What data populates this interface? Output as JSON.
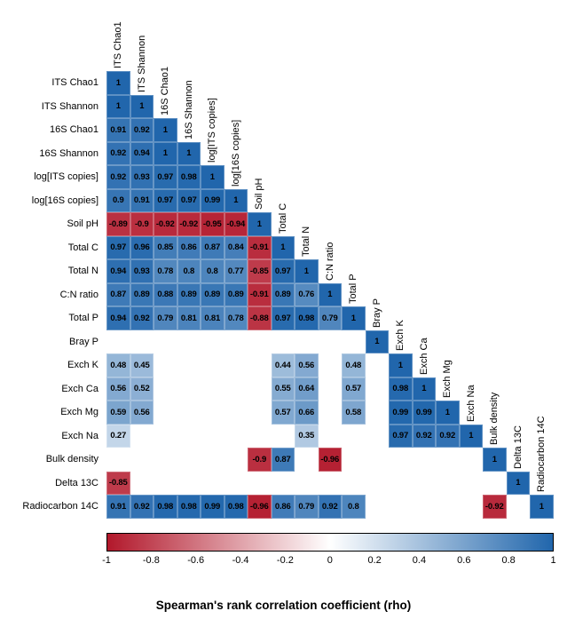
{
  "chart_data": {
    "type": "heatmap",
    "title": "Spearman's rank correlation coefficient (rho)",
    "triangle": "lower",
    "variables": [
      "ITS Chao1",
      "ITS Shannon",
      "16S Chao1",
      "16S Shannon",
      "log[ITS copies]",
      "log[16S copies]",
      "Soil pH",
      "Total C",
      "Total N",
      "C:N ratio",
      "Total P",
      "Bray P",
      "Exch K",
      "Exch Ca",
      "Exch Mg",
      "Exch Na",
      "Bulk density",
      "Delta 13C",
      "Radiocarbon 14C"
    ],
    "matrix": [
      [
        "1"
      ],
      [
        "1",
        "1"
      ],
      [
        "0.91",
        "0.92",
        "1"
      ],
      [
        "0.92",
        "0.94",
        "1",
        "1"
      ],
      [
        "0.92",
        "0.93",
        "0.97",
        "0.98",
        "1"
      ],
      [
        "0.9",
        "0.91",
        "0.97",
        "0.97",
        "0.99",
        "1"
      ],
      [
        "-0.89",
        "-0.9",
        "-0.92",
        "-0.92",
        "-0.95",
        "-0.94",
        "1"
      ],
      [
        "0.97",
        "0.96",
        "0.85",
        "0.86",
        "0.87",
        "0.84",
        "-0.91",
        "1"
      ],
      [
        "0.94",
        "0.93",
        "0.78",
        "0.8",
        "0.8",
        "0.77",
        "-0.85",
        "0.97",
        "1"
      ],
      [
        "0.87",
        "0.89",
        "0.88",
        "0.89",
        "0.89",
        "0.89",
        "-0.91",
        "0.89",
        "0.76",
        "1"
      ],
      [
        "0.94",
        "0.92",
        "0.79",
        "0.81",
        "0.81",
        "0.78",
        "-0.88",
        "0.97",
        "0.98",
        "0.79",
        "1"
      ],
      [
        null,
        null,
        null,
        null,
        null,
        null,
        null,
        null,
        null,
        null,
        null,
        "1"
      ],
      [
        "0.48",
        "0.45",
        null,
        null,
        null,
        null,
        null,
        "0.44",
        "0.56",
        null,
        "0.48",
        null,
        "1"
      ],
      [
        "0.56",
        "0.52",
        null,
        null,
        null,
        null,
        null,
        "0.55",
        "0.64",
        null,
        "0.57",
        null,
        "0.98",
        "1"
      ],
      [
        "0.59",
        "0.56",
        null,
        null,
        null,
        null,
        null,
        "0.57",
        "0.66",
        null,
        "0.58",
        null,
        "0.99",
        "0.99",
        "1"
      ],
      [
        "0.27",
        null,
        null,
        null,
        null,
        null,
        null,
        null,
        "0.35",
        null,
        null,
        null,
        "0.97",
        "0.92",
        "0.92",
        "1"
      ],
      [
        null,
        null,
        null,
        null,
        null,
        null,
        "-0.9",
        "0.87",
        null,
        "-0.96",
        null,
        null,
        null,
        null,
        null,
        null,
        "1"
      ],
      [
        "-0.85",
        null,
        null,
        null,
        null,
        null,
        null,
        null,
        null,
        null,
        null,
        null,
        null,
        null,
        null,
        null,
        null,
        "1"
      ],
      [
        "0.91",
        "0.92",
        "0.98",
        "0.98",
        "0.99",
        "0.98",
        "-0.96",
        "0.86",
        "0.79",
        "0.92",
        "0.8",
        null,
        null,
        null,
        null,
        null,
        "-0.92",
        null,
        "1"
      ]
    ],
    "colorbar": {
      "ticks": [
        "-1",
        "-0.8",
        "-0.6",
        "-0.4",
        "-0.2",
        "0",
        "0.2",
        "0.4",
        "0.6",
        "0.8",
        "1"
      ],
      "min": -1,
      "max": 1,
      "color_negative": "#b2182b",
      "color_zero": "#ffffff",
      "color_positive": "#2166ac",
      "position": "bottom"
    },
    "layout": {
      "grid": true,
      "blank_means": "not significant"
    }
  }
}
